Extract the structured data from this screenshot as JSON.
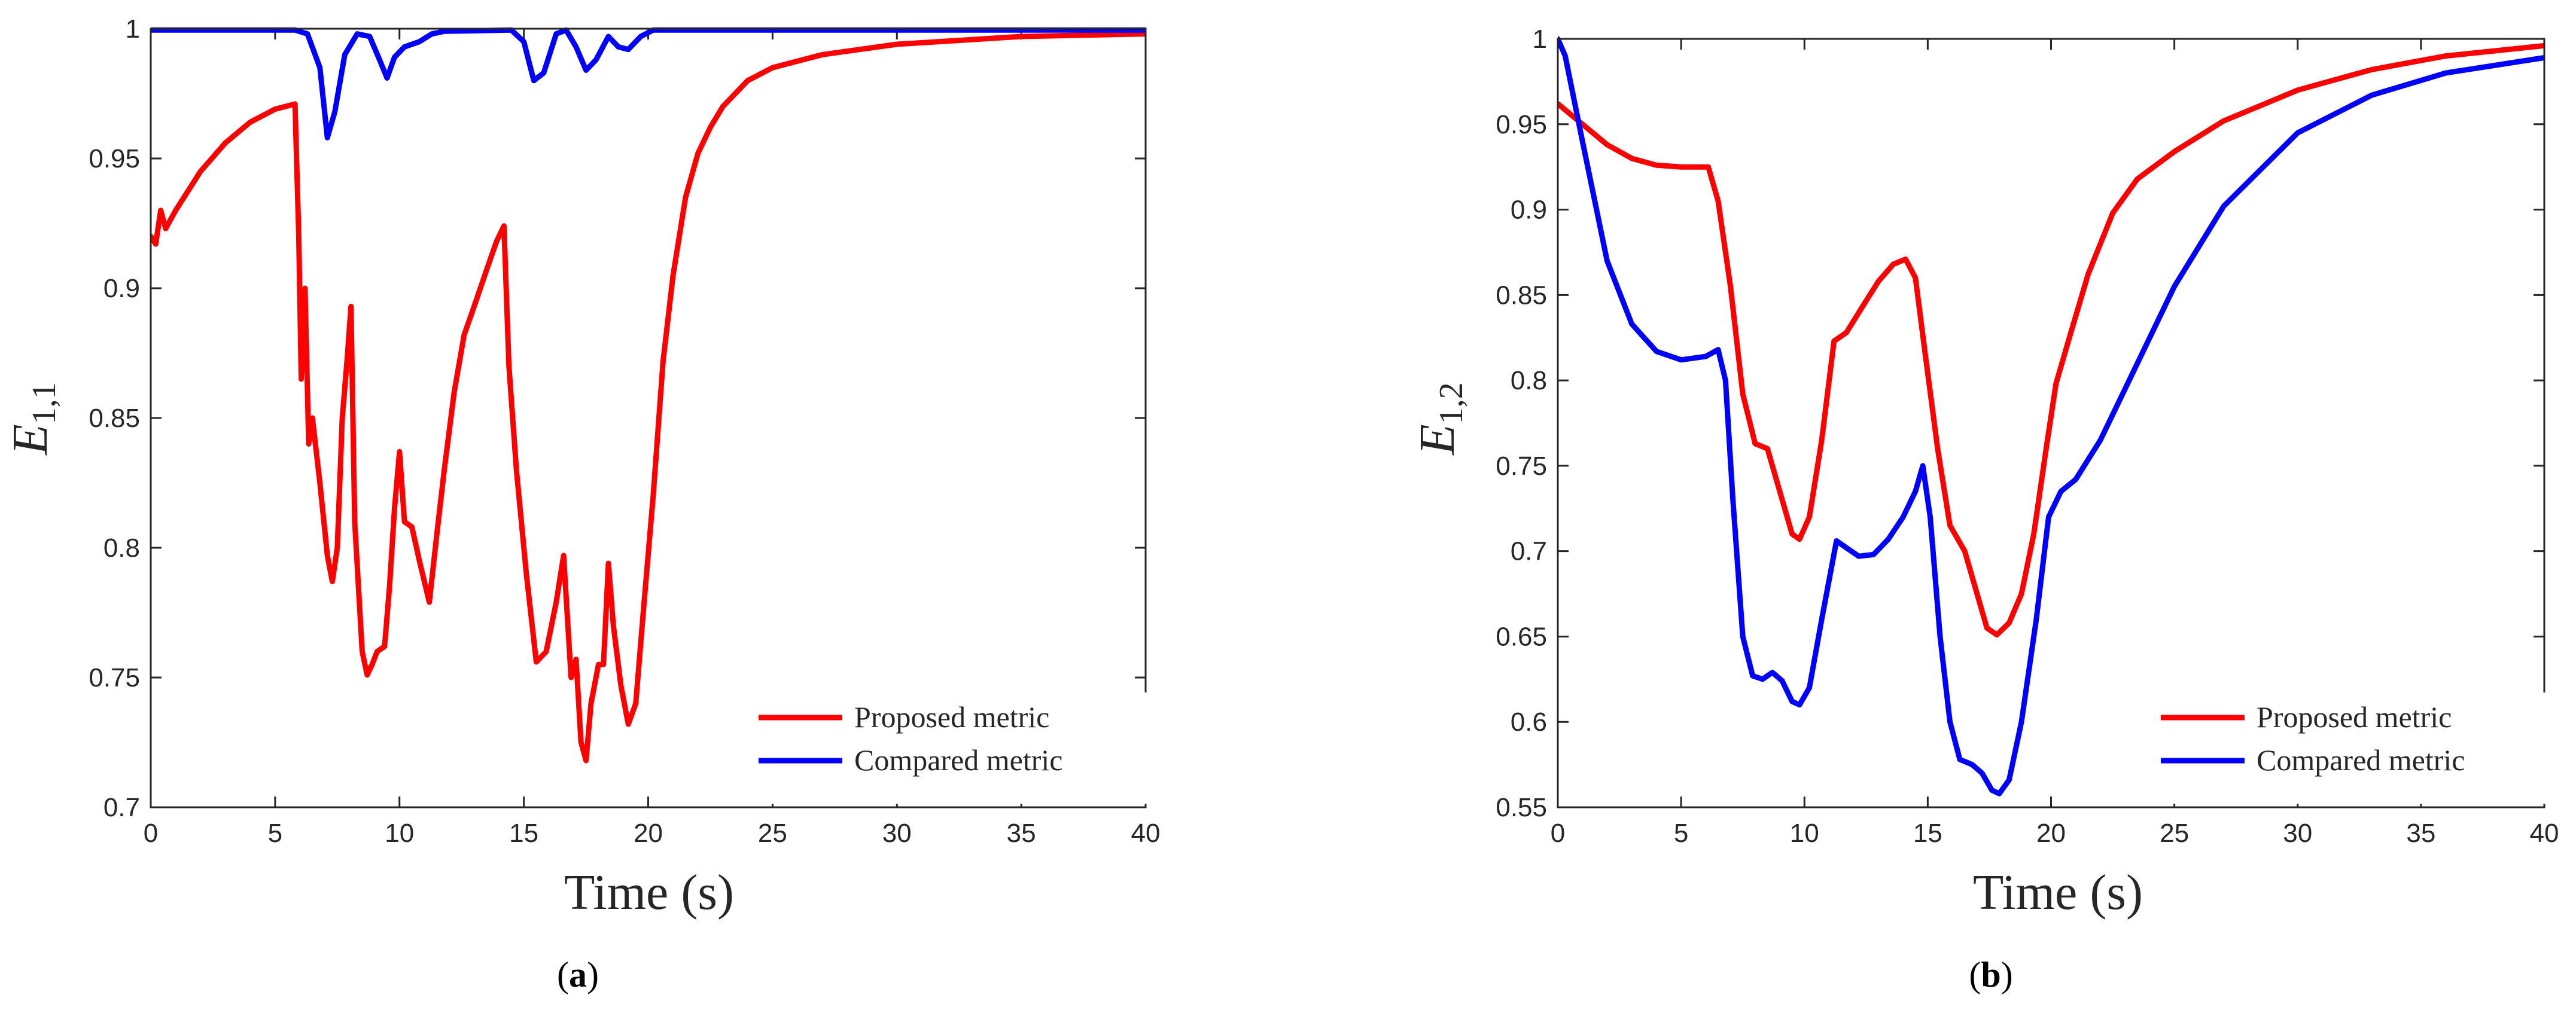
{
  "colors": {
    "red": "#ff0000",
    "blue": "#0000ff",
    "axis": "#262626"
  },
  "chart_data": [
    {
      "type": "line",
      "panel_label": {
        "open": "(",
        "letter": "a",
        "close": ")"
      },
      "xlabel": "Time (s)",
      "ylabel": {
        "base": "E",
        "sub": "1,1"
      },
      "xlim": [
        0,
        40
      ],
      "ylim": [
        0.7,
        1
      ],
      "xticks": [
        0,
        5,
        10,
        15,
        20,
        25,
        30,
        35,
        40
      ],
      "yticks": [
        0.7,
        0.75,
        0.8,
        0.85,
        0.9,
        0.95,
        1
      ],
      "ytick_labels": [
        "0.7",
        "0.75",
        "0.8",
        "0.85",
        "0.9",
        "0.95",
        "1"
      ],
      "legend": "bottom-right",
      "series": [
        {
          "name": "Proposed metric",
          "color": "#ff0000",
          "points": [
            [
              0,
              0.92
            ],
            [
              0.2,
              0.917
            ],
            [
              0.4,
              0.93
            ],
            [
              0.6,
              0.923
            ],
            [
              1,
              0.93
            ],
            [
              2,
              0.945
            ],
            [
              3,
              0.956
            ],
            [
              4,
              0.964
            ],
            [
              5,
              0.969
            ],
            [
              5.8,
              0.971
            ],
            [
              5.95,
              0.92
            ],
            [
              6.05,
              0.865
            ],
            [
              6.2,
              0.9
            ],
            [
              6.35,
              0.84
            ],
            [
              6.5,
              0.85
            ],
            [
              6.8,
              0.825
            ],
            [
              7.1,
              0.797
            ],
            [
              7.3,
              0.787
            ],
            [
              7.5,
              0.8
            ],
            [
              7.7,
              0.85
            ],
            [
              7.9,
              0.873
            ],
            [
              8.05,
              0.893
            ],
            [
              8.2,
              0.81
            ],
            [
              8.5,
              0.76
            ],
            [
              8.7,
              0.751
            ],
            [
              8.9,
              0.755
            ],
            [
              9.1,
              0.76
            ],
            [
              9.4,
              0.762
            ],
            [
              9.6,
              0.785
            ],
            [
              9.8,
              0.815
            ],
            [
              10,
              0.837
            ],
            [
              10.2,
              0.81
            ],
            [
              10.5,
              0.808
            ],
            [
              10.8,
              0.795
            ],
            [
              11.2,
              0.779
            ],
            [
              11.5,
              0.805
            ],
            [
              11.8,
              0.83
            ],
            [
              12.2,
              0.86
            ],
            [
              12.6,
              0.882
            ],
            [
              13,
              0.893
            ],
            [
              13.5,
              0.907
            ],
            [
              13.9,
              0.918
            ],
            [
              14.2,
              0.924
            ],
            [
              14.4,
              0.87
            ],
            [
              14.7,
              0.83
            ],
            [
              15.1,
              0.79
            ],
            [
              15.5,
              0.756
            ],
            [
              15.9,
              0.76
            ],
            [
              16.3,
              0.779
            ],
            [
              16.6,
              0.797
            ],
            [
              16.9,
              0.75
            ],
            [
              17.1,
              0.757
            ],
            [
              17.3,
              0.725
            ],
            [
              17.5,
              0.718
            ],
            [
              17.7,
              0.74
            ],
            [
              18,
              0.755
            ],
            [
              18.2,
              0.755
            ],
            [
              18.4,
              0.794
            ],
            [
              18.6,
              0.77
            ],
            [
              18.9,
              0.747
            ],
            [
              19.2,
              0.732
            ],
            [
              19.5,
              0.74
            ],
            [
              19.8,
              0.775
            ],
            [
              20.2,
              0.82
            ],
            [
              20.6,
              0.872
            ],
            [
              21,
              0.905
            ],
            [
              21.5,
              0.935
            ],
            [
              22,
              0.952
            ],
            [
              22.5,
              0.962
            ],
            [
              23,
              0.97
            ],
            [
              24,
              0.98
            ],
            [
              25,
              0.985
            ],
            [
              27,
              0.99
            ],
            [
              30,
              0.994
            ],
            [
              35,
              0.997
            ],
            [
              40,
              0.998
            ]
          ]
        },
        {
          "name": "Compared metric",
          "color": "#0000ff",
          "points": [
            [
              0,
              0.9995
            ],
            [
              5.8,
              0.9995
            ],
            [
              6.3,
              0.998
            ],
            [
              6.8,
              0.985
            ],
            [
              7.1,
              0.958
            ],
            [
              7.4,
              0.968
            ],
            [
              7.8,
              0.99
            ],
            [
              8.3,
              0.998
            ],
            [
              8.8,
              0.997
            ],
            [
              9.2,
              0.988
            ],
            [
              9.5,
              0.981
            ],
            [
              9.8,
              0.989
            ],
            [
              10.2,
              0.993
            ],
            [
              10.8,
              0.995
            ],
            [
              11.3,
              0.998
            ],
            [
              11.8,
              0.999
            ],
            [
              14.5,
              0.9995
            ],
            [
              15,
              0.995
            ],
            [
              15.4,
              0.98
            ],
            [
              15.8,
              0.983
            ],
            [
              16.3,
              0.998
            ],
            [
              16.7,
              0.9995
            ],
            [
              17.1,
              0.993
            ],
            [
              17.5,
              0.984
            ],
            [
              17.9,
              0.988
            ],
            [
              18.4,
              0.997
            ],
            [
              18.8,
              0.993
            ],
            [
              19.2,
              0.992
            ],
            [
              19.7,
              0.997
            ],
            [
              20.2,
              0.9995
            ],
            [
              40,
              0.9995
            ]
          ]
        }
      ]
    },
    {
      "type": "line",
      "panel_label": {
        "open": "(",
        "letter": "b",
        "close": ")"
      },
      "xlabel": "Time (s)",
      "ylabel": {
        "base": "E",
        "sub": "1,2"
      },
      "xlim": [
        0,
        40
      ],
      "ylim": [
        0.55,
        1
      ],
      "xticks": [
        0,
        5,
        10,
        15,
        20,
        25,
        30,
        35,
        40
      ],
      "yticks": [
        0.55,
        0.6,
        0.65,
        0.7,
        0.75,
        0.8,
        0.85,
        0.9,
        0.95,
        1
      ],
      "ytick_labels": [
        "0.55",
        "0.6",
        "0.65",
        "0.7",
        "0.75",
        "0.8",
        "0.85",
        "0.9",
        "0.95",
        "1"
      ],
      "legend": "bottom-right",
      "series": [
        {
          "name": "Proposed metric",
          "color": "#ff0000",
          "points": [
            [
              0,
              0.962
            ],
            [
              1,
              0.95
            ],
            [
              2,
              0.938
            ],
            [
              3,
              0.93
            ],
            [
              4,
              0.926
            ],
            [
              5,
              0.925
            ],
            [
              6.1,
              0.925
            ],
            [
              6.5,
              0.905
            ],
            [
              7,
              0.855
            ],
            [
              7.5,
              0.792
            ],
            [
              8,
              0.763
            ],
            [
              8.5,
              0.76
            ],
            [
              9,
              0.735
            ],
            [
              9.5,
              0.71
            ],
            [
              9.8,
              0.707
            ],
            [
              10.2,
              0.72
            ],
            [
              10.7,
              0.765
            ],
            [
              11.2,
              0.823
            ],
            [
              11.7,
              0.828
            ],
            [
              12.3,
              0.842
            ],
            [
              13,
              0.858
            ],
            [
              13.6,
              0.868
            ],
            [
              14.1,
              0.871
            ],
            [
              14.5,
              0.86
            ],
            [
              14.9,
              0.815
            ],
            [
              15.4,
              0.76
            ],
            [
              15.9,
              0.715
            ],
            [
              16.5,
              0.7
            ],
            [
              17,
              0.675
            ],
            [
              17.4,
              0.655
            ],
            [
              17.8,
              0.651
            ],
            [
              18.3,
              0.658
            ],
            [
              18.8,
              0.675
            ],
            [
              19.3,
              0.71
            ],
            [
              19.8,
              0.76
            ],
            [
              20.2,
              0.798
            ],
            [
              20.7,
              0.823
            ],
            [
              21.5,
              0.862
            ],
            [
              22.5,
              0.898
            ],
            [
              23.5,
              0.918
            ],
            [
              25,
              0.934
            ],
            [
              27,
              0.952
            ],
            [
              30,
              0.97
            ],
            [
              33,
              0.982
            ],
            [
              36,
              0.99
            ],
            [
              40,
              0.996
            ]
          ]
        },
        {
          "name": "Compared metric",
          "color": "#0000ff",
          "points": [
            [
              0,
              1
            ],
            [
              0.3,
              0.99
            ],
            [
              1,
              0.94
            ],
            [
              2,
              0.87
            ],
            [
              3,
              0.833
            ],
            [
              4,
              0.817
            ],
            [
              5,
              0.812
            ],
            [
              6,
              0.814
            ],
            [
              6.5,
              0.818
            ],
            [
              6.8,
              0.8
            ],
            [
              7.1,
              0.73
            ],
            [
              7.5,
              0.65
            ],
            [
              7.9,
              0.627
            ],
            [
              8.3,
              0.625
            ],
            [
              8.7,
              0.629
            ],
            [
              9.1,
              0.624
            ],
            [
              9.5,
              0.612
            ],
            [
              9.8,
              0.61
            ],
            [
              10.2,
              0.62
            ],
            [
              10.7,
              0.66
            ],
            [
              11.3,
              0.706
            ],
            [
              11.7,
              0.702
            ],
            [
              12.2,
              0.697
            ],
            [
              12.8,
              0.698
            ],
            [
              13.4,
              0.707
            ],
            [
              14,
              0.72
            ],
            [
              14.5,
              0.735
            ],
            [
              14.8,
              0.75
            ],
            [
              15.1,
              0.72
            ],
            [
              15.5,
              0.65
            ],
            [
              15.9,
              0.6
            ],
            [
              16.3,
              0.578
            ],
            [
              16.8,
              0.575
            ],
            [
              17.2,
              0.57
            ],
            [
              17.6,
              0.56
            ],
            [
              17.9,
              0.558
            ],
            [
              18.3,
              0.566
            ],
            [
              18.8,
              0.6
            ],
            [
              19.4,
              0.66
            ],
            [
              19.9,
              0.72
            ],
            [
              20.4,
              0.735
            ],
            [
              21,
              0.742
            ],
            [
              22,
              0.765
            ],
            [
              23,
              0.795
            ],
            [
              25,
              0.855
            ],
            [
              27,
              0.902
            ],
            [
              30,
              0.945
            ],
            [
              33,
              0.967
            ],
            [
              36,
              0.98
            ],
            [
              40,
              0.989
            ]
          ]
        }
      ]
    }
  ]
}
